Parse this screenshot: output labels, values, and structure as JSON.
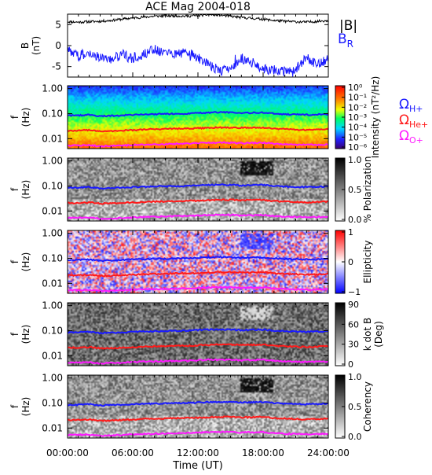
{
  "figure": {
    "title": "ACE Mag 2004-018",
    "xlabel": "Time (UT)"
  },
  "time_ticks": [
    "00:00:00",
    "06:00:00",
    "12:00:00",
    "18:00:00",
    "24:00:00"
  ],
  "freq_ticks": [
    "1.00",
    "0.10",
    "0.01"
  ],
  "legend": {
    "mag": [
      {
        "label": "|B|",
        "color": "#000000"
      },
      {
        "label": "B",
        "sub": "R",
        "color": "#1a1aff"
      }
    ],
    "gyro": [
      {
        "sub": "H+",
        "color": "#1a1aff"
      },
      {
        "sub": "He+",
        "color": "#ff1a1a"
      },
      {
        "sub": "O+",
        "color": "#ff19ff"
      }
    ]
  },
  "chart_data": [
    {
      "type": "line",
      "title": "ACE Mag 2004-018",
      "ylabel_line1": "B",
      "ylabel_line2": "(nT)",
      "xlim": [
        0,
        24
      ],
      "ylim": [
        -7.5,
        7.5
      ],
      "yticks": [
        5,
        0,
        -5
      ],
      "series": [
        {
          "name": "|B|",
          "color": "#000000",
          "x": [
            0,
            1,
            2,
            3,
            4,
            5,
            6,
            7,
            8,
            9,
            10,
            11,
            12,
            13,
            14,
            15,
            16,
            17,
            18,
            19,
            20,
            21,
            22,
            23,
            24
          ],
          "y": [
            5.7,
            5.6,
            5.7,
            5.8,
            6.0,
            6.3,
            6.6,
            6.8,
            7.0,
            7.1,
            7.1,
            7.0,
            7.2,
            7.4,
            7.3,
            7.0,
            6.7,
            6.5,
            6.3,
            6.0,
            5.8,
            5.7,
            5.6,
            5.8,
            6.0
          ]
        },
        {
          "name": "B_R",
          "color": "#1a1aff",
          "x": [
            0,
            1,
            2,
            3,
            4,
            5,
            6,
            7,
            8,
            9,
            10,
            11,
            12,
            13,
            14,
            15,
            16,
            17,
            18,
            19,
            20,
            21,
            22,
            23,
            24
          ],
          "y": [
            -1.0,
            -2.5,
            -1.5,
            -3.0,
            -3.5,
            -2.0,
            -3.0,
            -2.0,
            -1.0,
            -1.5,
            -2.0,
            -1.5,
            -3.0,
            -4.5,
            -6.0,
            -5.5,
            -3.0,
            -4.0,
            -5.5,
            -6.0,
            -6.0,
            -5.5,
            -3.0,
            -4.5,
            -3.0
          ]
        }
      ]
    },
    {
      "type": "heatmap",
      "quantity": "Intensity",
      "ylabel_line1": "f",
      "ylabel_line2": "(Hz)",
      "colorbar": {
        "label": "Intensity (nT²/Hz)",
        "ticks": [
          "10⁰",
          "10⁻¹",
          "10⁻²",
          "10⁻³",
          "10⁻⁴",
          "10⁻⁵",
          "10⁻⁶"
        ]
      }
    },
    {
      "type": "heatmap",
      "quantity": "% Polarization",
      "ylabel_line1": "f",
      "ylabel_line2": "(Hz)",
      "colorbar": {
        "label": "% Polarization",
        "ticks": [
          "1.0",
          "0.5",
          "0.0"
        ]
      }
    },
    {
      "type": "heatmap",
      "quantity": "Ellipticity",
      "ylabel_line1": "f",
      "ylabel_line2": "(Hz)",
      "colorbar": {
        "label": "Ellipticity",
        "ticks": [
          "1",
          "0",
          "−1"
        ]
      }
    },
    {
      "type": "heatmap",
      "quantity": "k dot B",
      "ylabel_line1": "f",
      "ylabel_line2": "(Hz)",
      "colorbar": {
        "label": "k dot B",
        "label2": "(Deg)",
        "ticks": [
          "90",
          "60",
          "30",
          "0"
        ]
      }
    },
    {
      "type": "heatmap",
      "quantity": "Coherency",
      "ylabel_line1": "f",
      "ylabel_line2": "(Hz)",
      "colorbar": {
        "label": "Coherency",
        "ticks": [
          "1.0",
          "0.5",
          "0.0"
        ]
      }
    }
  ],
  "gyrofrequency_lines": {
    "x": [
      0,
      1,
      2,
      3,
      4,
      5,
      6,
      7,
      8,
      9,
      10,
      11,
      12,
      13,
      14,
      15,
      16,
      17,
      18,
      19,
      20,
      21,
      22,
      23,
      24
    ],
    "H+": [
      0.085,
      0.085,
      0.09,
      0.08,
      0.082,
      0.085,
      0.09,
      0.092,
      0.095,
      0.097,
      0.098,
      0.1,
      0.105,
      0.11,
      0.112,
      0.11,
      0.105,
      0.108,
      0.11,
      0.1,
      0.095,
      0.092,
      0.09,
      0.092,
      0.095
    ],
    "He+": [
      0.021,
      0.021,
      0.022,
      0.02,
      0.02,
      0.021,
      0.022,
      0.023,
      0.024,
      0.024,
      0.025,
      0.025,
      0.026,
      0.027,
      0.028,
      0.028,
      0.027,
      0.027,
      0.028,
      0.025,
      0.024,
      0.023,
      0.022,
      0.023,
      0.024
    ],
    "O+": [
      0.0053,
      0.0053,
      0.0055,
      0.005,
      0.0051,
      0.0053,
      0.0056,
      0.0058,
      0.0059,
      0.0061,
      0.0062,
      0.0063,
      0.0066,
      0.0069,
      0.007,
      0.0069,
      0.0066,
      0.0068,
      0.0069,
      0.0063,
      0.0059,
      0.0058,
      0.0056,
      0.0058,
      0.0059
    ]
  }
}
